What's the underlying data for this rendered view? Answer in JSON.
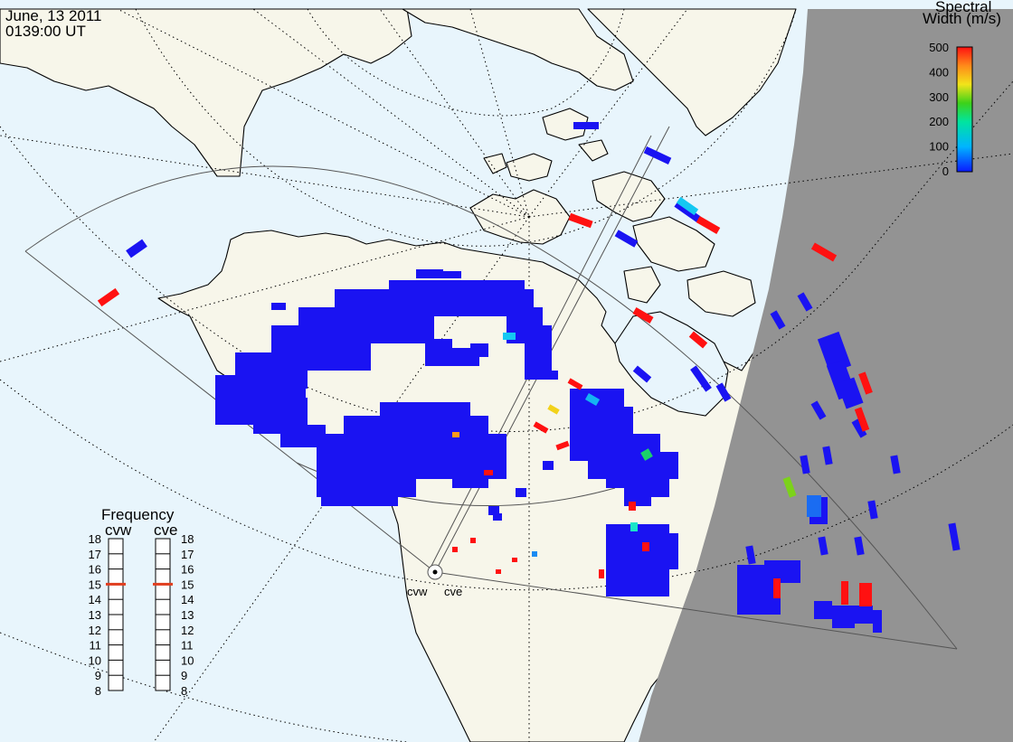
{
  "header": {
    "date": "June, 13 2011",
    "time": "0139:00 UT"
  },
  "colorbar": {
    "title_line1": "Spectral",
    "title_line2": "Width (m/s)",
    "ticks": [
      "500",
      "400",
      "300",
      "200",
      "100",
      "0"
    ]
  },
  "frequency_panel": {
    "title": "Frequency",
    "radars": [
      {
        "name": "cvw",
        "value_mhz": 15
      },
      {
        "name": "cve",
        "value_mhz": 15
      }
    ],
    "ticks": [
      "18",
      "17",
      "16",
      "15",
      "14",
      "13",
      "12",
      "11",
      "10",
      "9",
      "8"
    ]
  },
  "site_labels": [
    "cvw",
    "cve"
  ],
  "colors": {
    "ocean": "#e8f5fc",
    "land": "#f7f6ea",
    "night": "#939393",
    "scatter_low": "#1a13f2",
    "scatter_high": "#ff1111",
    "freq_marker": "#e03e1f"
  }
}
